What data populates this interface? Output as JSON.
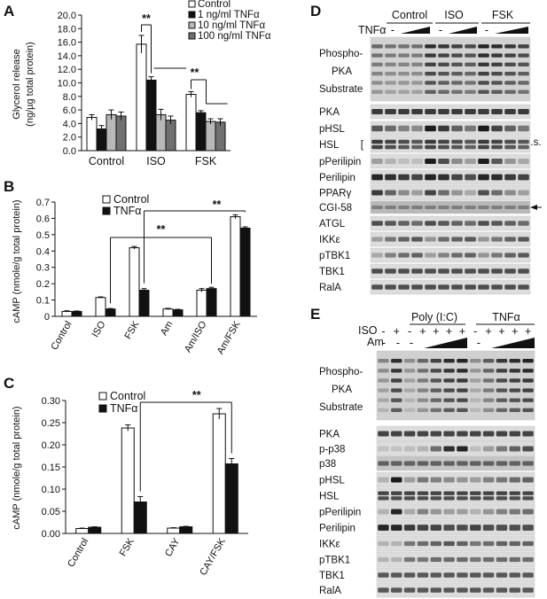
{
  "panels": {
    "A": {
      "letter": "A",
      "chart_data": {
        "type": "bar",
        "ylabel_line1": "Glycerol release",
        "ylabel_line2": "(ng/µg total protein)",
        "ylim": [
          0,
          20
        ],
        "yticks": [
          "0.0",
          "2.0",
          "4.0",
          "6.0",
          "8.0",
          "10.0",
          "12.0",
          "14.0",
          "16.0",
          "18.0",
          "20.0"
        ],
        "categories": [
          "Control",
          "ISO",
          "FSK"
        ],
        "series": [
          {
            "name": "Control",
            "color": "#ffffff",
            "values": [
              4.9,
              15.7,
              8.3
            ],
            "errors": [
              0.4,
              1.3,
              0.4
            ]
          },
          {
            "name": "1 ng/ml TNFα",
            "color": "#111111",
            "values": [
              3.2,
              10.4,
              5.6
            ],
            "errors": [
              0.5,
              0.5,
              0.3
            ]
          },
          {
            "name": "10 ng/ml TNFα",
            "color": "#b8b8b8",
            "values": [
              5.3,
              5.3,
              4.3
            ],
            "errors": [
              0.7,
              0.8,
              0.4
            ]
          },
          {
            "name": "100 ng/ml TNFα",
            "color": "#707070",
            "values": [
              5.1,
              4.5,
              4.2
            ],
            "errors": [
              0.6,
              0.6,
              0.5
            ]
          }
        ],
        "significance": [
          "**",
          "**"
        ]
      }
    },
    "B": {
      "letter": "B",
      "chart_data": {
        "type": "bar",
        "ylabel": "cAMP (nmole/g total protein)",
        "ylim": [
          0,
          0.7
        ],
        "yticks": [
          "0",
          "0.1",
          "0.2",
          "0.3",
          "0.4",
          "0.5",
          "0.6",
          "0.7"
        ],
        "categories": [
          "Control",
          "ISO",
          "FSK",
          "Am",
          "Am/ISO",
          "Am/FSK"
        ],
        "series": [
          {
            "name": "Control",
            "color": "#ffffff",
            "values": [
              0.03,
              0.115,
              0.42,
              0.045,
              0.16,
              0.61
            ],
            "errors": [
              0.004,
              0.004,
              0.008,
              0.004,
              0.01,
              0.012
            ]
          },
          {
            "name": "TNFα",
            "color": "#111111",
            "values": [
              0.03,
              0.045,
              0.16,
              0.04,
              0.17,
              0.54
            ],
            "errors": [
              0.003,
              0.003,
              0.01,
              0.003,
              0.008,
              0.008
            ]
          }
        ],
        "significance": [
          "**",
          "**"
        ]
      }
    },
    "C": {
      "letter": "C",
      "chart_data": {
        "type": "bar",
        "ylabel": "cAMP (nmole/g total protein)",
        "ylim": [
          0,
          0.3
        ],
        "yticks": [
          "0.00",
          "0.05",
          "0.10",
          "0.15",
          "0.20",
          "0.25",
          "0.30"
        ],
        "categories": [
          "Control",
          "FSK",
          "CAY",
          "CAY/FSK"
        ],
        "series": [
          {
            "name": "Control",
            "color": "#ffffff",
            "values": [
              0.011,
              0.238,
              0.012,
              0.27
            ],
            "errors": [
              0.001,
              0.007,
              0.001,
              0.012
            ]
          },
          {
            "name": "TNFα",
            "color": "#111111",
            "values": [
              0.014,
              0.071,
              0.015,
              0.157
            ],
            "errors": [
              0.001,
              0.012,
              0.001,
              0.012
            ]
          }
        ],
        "significance": [
          "**"
        ]
      }
    },
    "D": {
      "letter": "D",
      "groups": [
        "Control",
        "ISO",
        "FSK"
      ],
      "treatment_label": "TNFα",
      "minus": "-",
      "rows": [
        "Phospho-PKA Substrate",
        "PKA",
        "pHSL",
        "HSL",
        "pPerilipin",
        "Perilipin",
        "PPARγ",
        "CGI-58",
        "ATGL",
        "IKKε",
        "pTBK1",
        "TBK1",
        "RalA"
      ],
      "note_ns": "n.s."
    },
    "E": {
      "letter": "E",
      "groups": [
        "Poly (I:C)",
        "TNFα"
      ],
      "treatment_labels": [
        "ISO",
        "Am"
      ],
      "iso_row": [
        "-",
        "+",
        "-",
        "+",
        "+",
        "+",
        "+",
        "-",
        "+",
        "+",
        "+",
        "+"
      ],
      "am_row": [
        "-",
        "-",
        "-",
        "-"
      ],
      "rows": [
        "Phospho-PKA Substrate",
        "PKA",
        "p-p38",
        "p38",
        "pHSL",
        "HSL",
        "pPerilipin",
        "Perilipin",
        "IKKε",
        "pTBK1",
        "TBK1",
        "RalA"
      ]
    }
  }
}
